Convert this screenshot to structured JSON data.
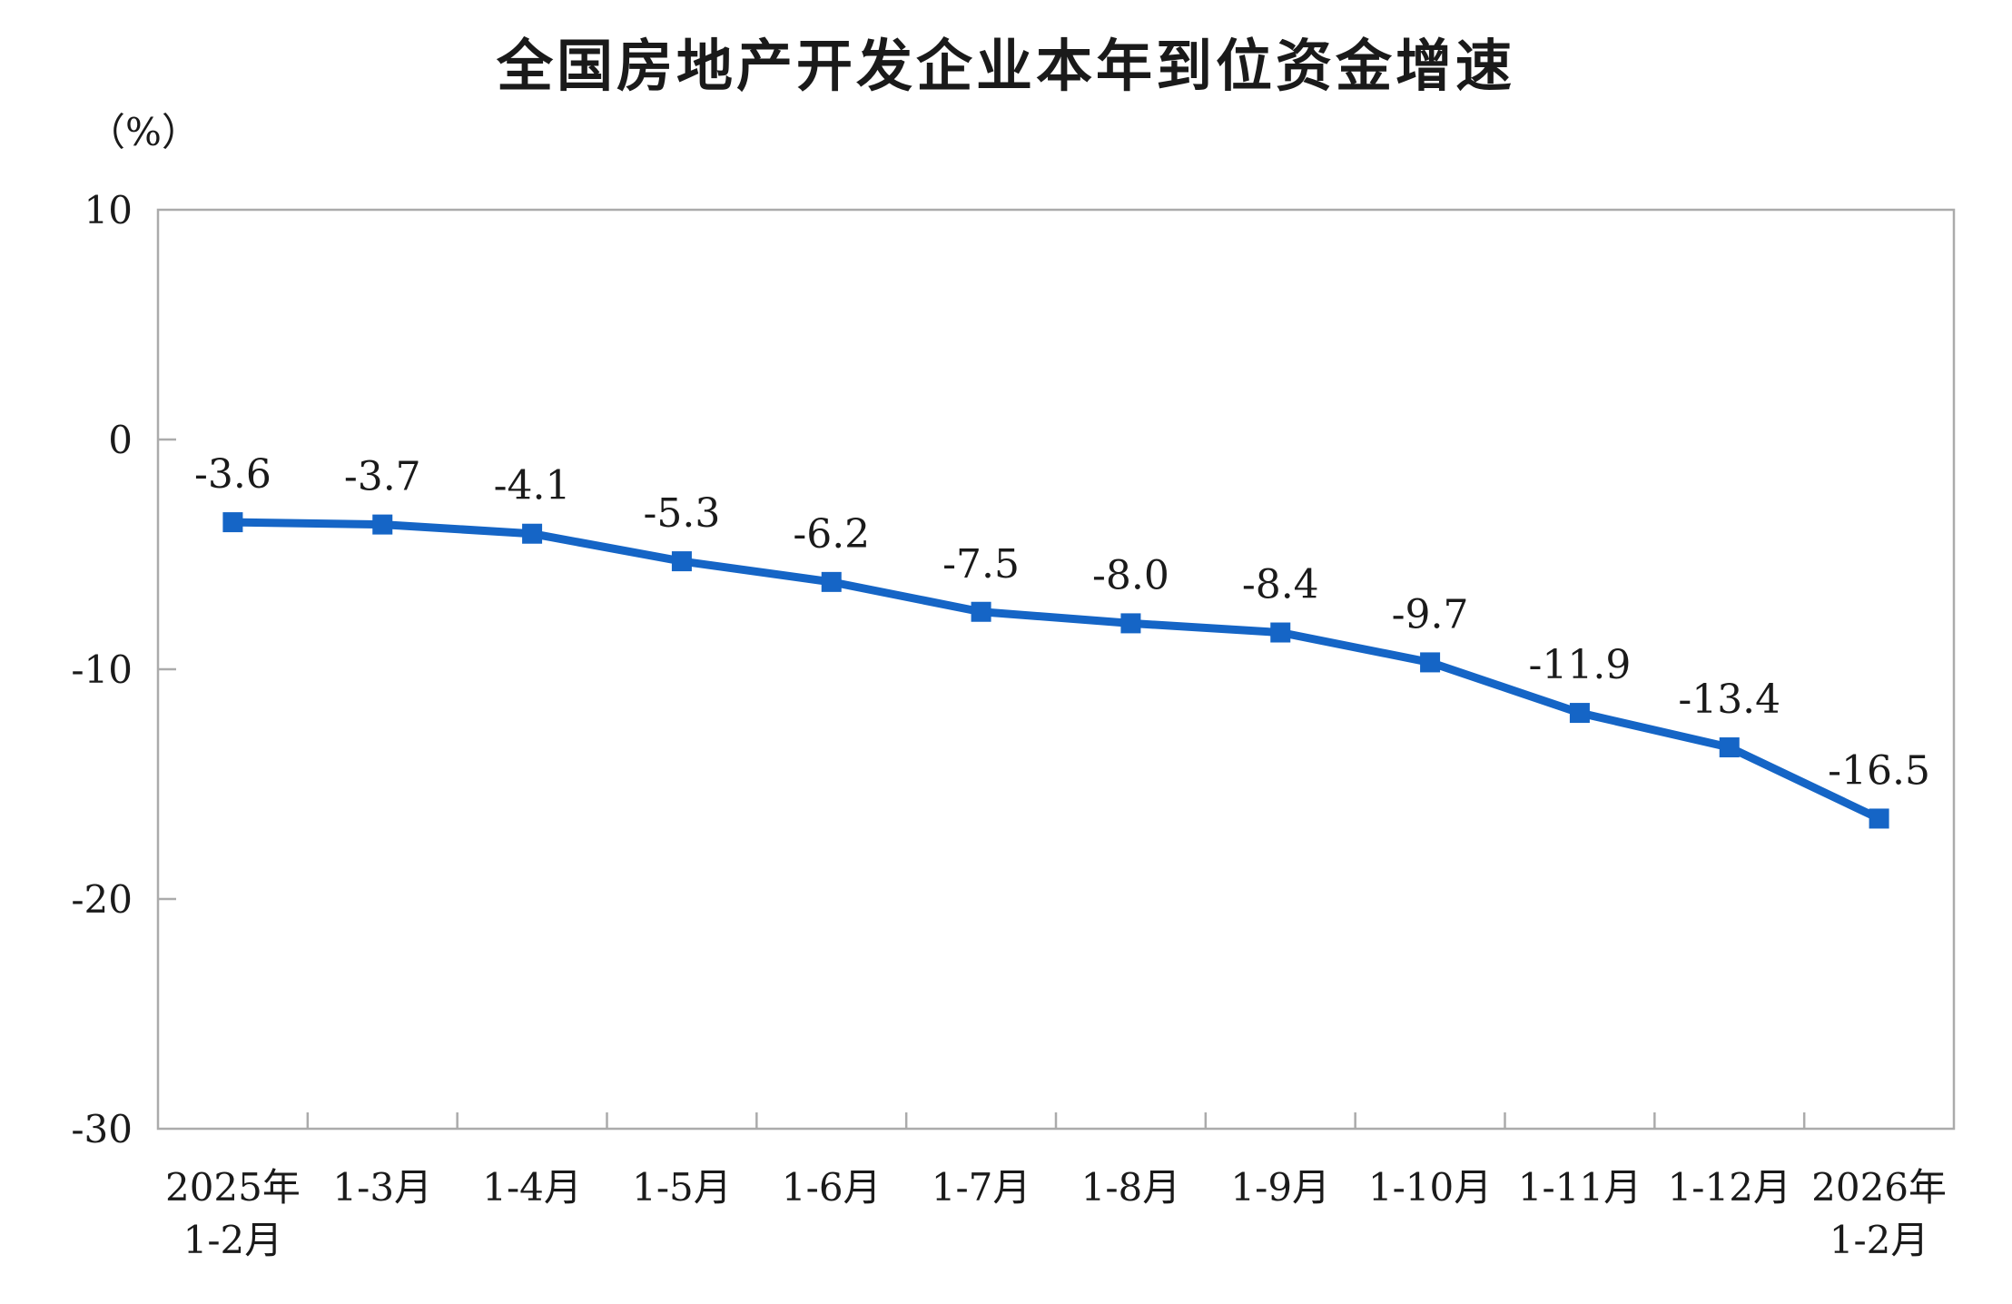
{
  "chart_data": {
    "type": "line",
    "title": "全国房地产开发企业本年到位资金增速",
    "unit_label": "（%）",
    "categories": [
      [
        "2025年",
        "1-2月"
      ],
      [
        "1-3月"
      ],
      [
        "1-4月"
      ],
      [
        "1-5月"
      ],
      [
        "1-6月"
      ],
      [
        "1-7月"
      ],
      [
        "1-8月"
      ],
      [
        "1-9月"
      ],
      [
        "1-10月"
      ],
      [
        "1-11月"
      ],
      [
        "1-12月"
      ],
      [
        "2026年",
        "1-2月"
      ]
    ],
    "values": [
      -3.6,
      -3.7,
      -4.1,
      -5.3,
      -6.2,
      -7.5,
      -8.0,
      -8.4,
      -9.7,
      -11.9,
      -13.4,
      -16.5
    ],
    "point_labels": [
      "-3.6",
      "-3.7",
      "-4.1",
      "-5.3",
      "-6.2",
      "-7.5",
      "-8.0",
      "-8.4",
      "-9.7",
      "-11.9",
      "-13.4",
      "-16.5"
    ],
    "ylim": [
      -30,
      10
    ],
    "yticks": [
      10,
      0,
      -10,
      -20,
      -30
    ],
    "grid": false,
    "legend": "none",
    "marker": "square",
    "colors": {
      "line": "#1565c6",
      "marker": "#1565c6",
      "axis": "#ababab",
      "text": "#1a1a1a"
    }
  }
}
